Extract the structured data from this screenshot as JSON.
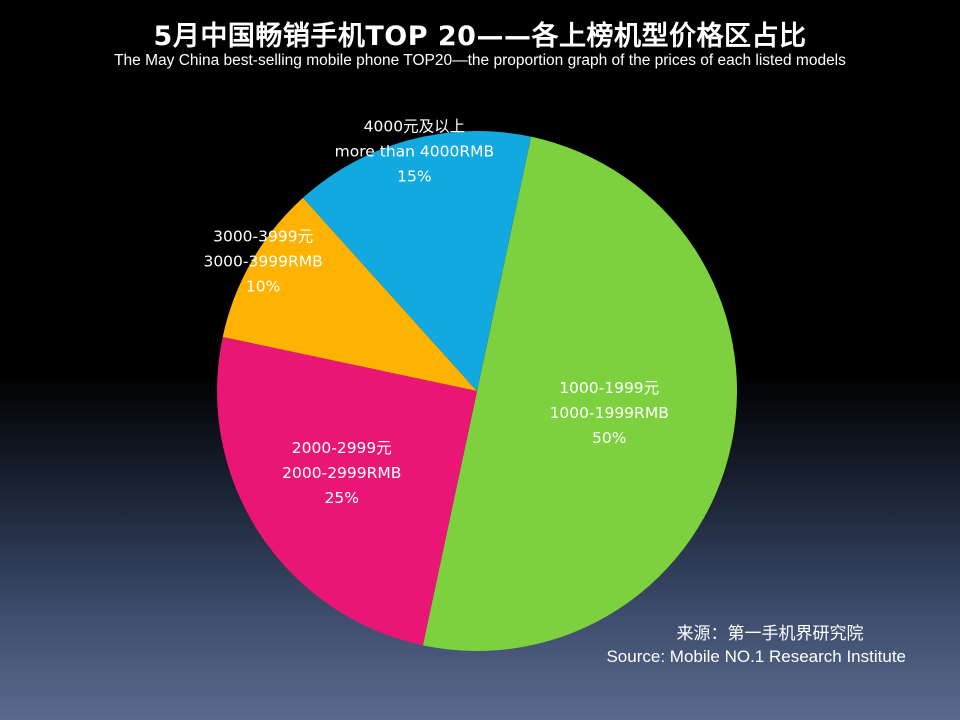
{
  "header": {
    "title": "5月中国畅销手机TOP 20——各上榜机型价格区占比",
    "subtitle": "The  May China best-selling mobile phone TOP20—the proportion graph of the prices of each listed models"
  },
  "source": {
    "cn": "来源：第一手机界研究院",
    "en": "Source: Mobile NO.1 Research Institute"
  },
  "chart_data": {
    "type": "pie",
    "title": "5月中国畅销手机TOP 20——各上榜机型价格区占比",
    "subtitle": "The  May China best-selling mobile phone TOP20—the proportion graph of the prices of each listed models",
    "legend": "none",
    "slices": [
      {
        "label_cn": "1000-1999元",
        "label_en": "1000-1999RMB",
        "value": 50,
        "value_label": "50%",
        "color": "#7dd13e"
      },
      {
        "label_cn": "2000-2999元",
        "label_en": "2000-2999RMB",
        "value": 25,
        "value_label": "25%",
        "color": "#ea1676"
      },
      {
        "label_cn": "3000-3999元",
        "label_en": "3000-3999RMB",
        "value": 10,
        "value_label": "10%",
        "color": "#ffb300"
      },
      {
        "label_cn": "4000元及以上",
        "label_en": "more than 4000RMB",
        "value": 15,
        "value_label": "15%",
        "color": "#12a9e0"
      }
    ]
  }
}
